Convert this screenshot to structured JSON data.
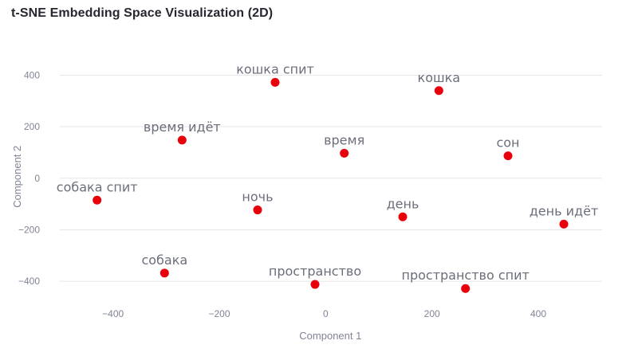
{
  "chart_data": {
    "type": "scatter",
    "title": "t-SNE Embedding Space Visualization (2D)",
    "xlabel": "Component 1",
    "ylabel": "Component 2",
    "xlim": [
      -500,
      520
    ],
    "ylim": [
      -520,
      500
    ],
    "x_ticks": [
      -400,
      -200,
      0,
      200,
      400
    ],
    "y_ticks": [
      -400,
      -200,
      0,
      200,
      400
    ],
    "x_tick_labels": [
      "−400",
      "−200",
      "0",
      "200",
      "400"
    ],
    "y_tick_labels": [
      "−400",
      "−200",
      "0",
      "200",
      "400"
    ],
    "grid": true,
    "marker_color": "#e8000b",
    "points": [
      {
        "label": "кошка спит",
        "x": -95,
        "y": 372
      },
      {
        "label": "кошка",
        "x": 213,
        "y": 340
      },
      {
        "label": "время идёт",
        "x": -270,
        "y": 148
      },
      {
        "label": "время",
        "x": 35,
        "y": 97
      },
      {
        "label": "сон",
        "x": 343,
        "y": 87
      },
      {
        "label": "собака спит",
        "x": -430,
        "y": -85
      },
      {
        "label": "ночь",
        "x": -128,
        "y": -123
      },
      {
        "label": "день",
        "x": 145,
        "y": -150
      },
      {
        "label": "день идёт",
        "x": 448,
        "y": -178
      },
      {
        "label": "собака",
        "x": -303,
        "y": -368
      },
      {
        "label": "пространство",
        "x": -20,
        "y": -412
      },
      {
        "label": "пространство спит",
        "x": 263,
        "y": -428
      }
    ]
  }
}
